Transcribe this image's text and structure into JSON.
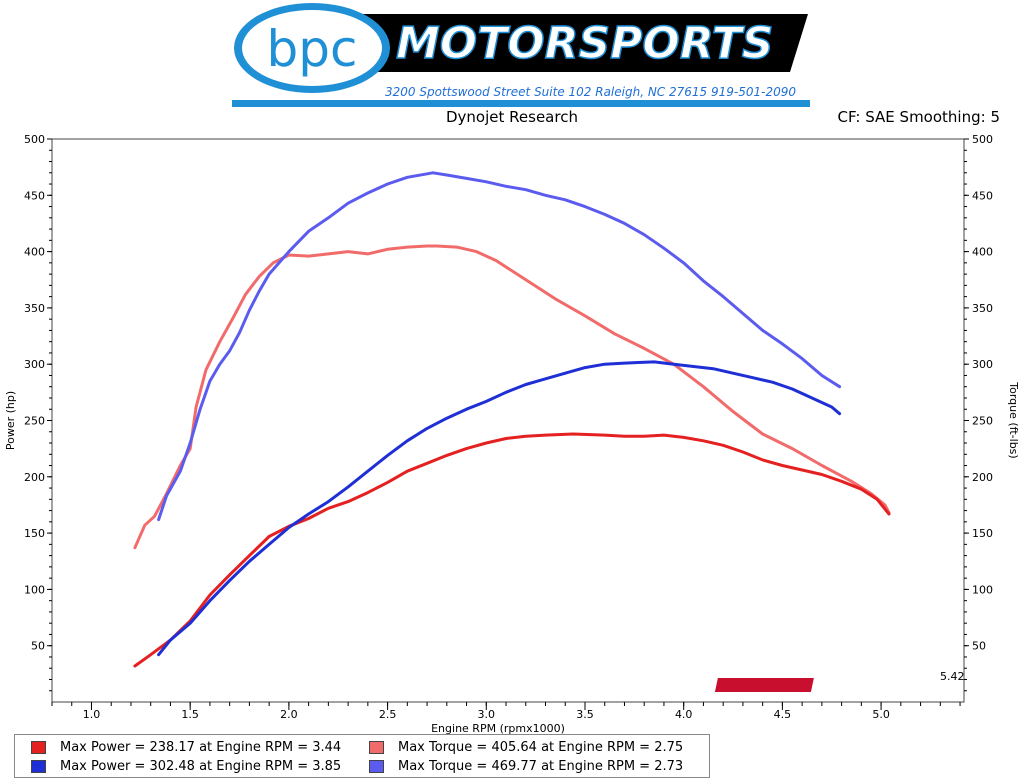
{
  "header": {
    "logo_text": "bpc",
    "brand_text": "MOTORSPORTS",
    "address": "3200 Spottswood Street Suite 102 Raleigh, NC 27615  919-501-2090"
  },
  "title": "Dynojet Research",
  "cf_label": "CF: SAE Smoothing: 5",
  "version": "5.42",
  "dynojet_logo": "Dynojet",
  "colors": {
    "power1": "#e52020",
    "torque1": "#f26b6b",
    "power2": "#1f2fd6",
    "torque2": "#5b5bef"
  },
  "legend": [
    {
      "text": "Max Power = 238.17 at Engine RPM = 3.44",
      "color": "#e52020"
    },
    {
      "text": "Max Torque = 405.64 at Engine RPM = 2.75",
      "color": "#f26b6b"
    },
    {
      "text": "Max Power = 302.48 at Engine RPM = 3.85",
      "color": "#1f2fd6"
    },
    {
      "text": "Max Torque = 469.77 at Engine RPM = 2.73",
      "color": "#5b5bef"
    }
  ],
  "chart_data": {
    "type": "line",
    "xlabel": "Engine RPM (rpmx1000)",
    "ylabel": "Power (hp)",
    "y2label": "Torque (ft-lbs)",
    "xlim": [
      0.8,
      5.42
    ],
    "ylim": [
      0,
      500
    ],
    "xticks": [
      "1.0",
      "1.5",
      "2.0",
      "2.5",
      "3.0",
      "3.5",
      "4.0",
      "4.5",
      "5.0"
    ],
    "yticks": [
      "50",
      "100",
      "150",
      "200",
      "250",
      "300",
      "350",
      "400",
      "450",
      "500"
    ],
    "grid": true,
    "series": [
      {
        "key": "torque1",
        "color": "#f26b6b",
        "x": [
          1.22,
          1.27,
          1.32,
          1.38,
          1.45,
          1.5,
          1.53,
          1.58,
          1.65,
          1.72,
          1.78,
          1.85,
          1.92,
          2.0,
          2.1,
          2.2,
          2.3,
          2.4,
          2.5,
          2.6,
          2.7,
          2.75,
          2.85,
          2.95,
          3.05,
          3.2,
          3.35,
          3.5,
          3.65,
          3.8,
          3.95,
          4.1,
          4.25,
          4.4,
          4.55,
          4.7,
          4.85,
          4.95,
          5.02,
          5.04
        ],
        "y": [
          137,
          157,
          165,
          185,
          210,
          225,
          262,
          295,
          320,
          342,
          362,
          378,
          390,
          397,
          396,
          398,
          400,
          398,
          402,
          404,
          405,
          405,
          404,
          400,
          392,
          375,
          358,
          343,
          327,
          314,
          300,
          280,
          258,
          238,
          225,
          210,
          196,
          185,
          175,
          168
        ]
      },
      {
        "key": "power1",
        "color": "#e52020",
        "x": [
          1.22,
          1.3,
          1.4,
          1.5,
          1.6,
          1.7,
          1.8,
          1.9,
          2.0,
          2.1,
          2.2,
          2.3,
          2.4,
          2.5,
          2.6,
          2.7,
          2.8,
          2.9,
          3.0,
          3.1,
          3.2,
          3.3,
          3.44,
          3.6,
          3.7,
          3.8,
          3.9,
          4.0,
          4.1,
          4.2,
          4.3,
          4.4,
          4.5,
          4.6,
          4.7,
          4.8,
          4.9,
          4.98,
          5.04
        ],
        "y": [
          32,
          42,
          55,
          72,
          95,
          113,
          130,
          147,
          156,
          163,
          172,
          178,
          186,
          195,
          205,
          212,
          219,
          225,
          230,
          234,
          236,
          237,
          238,
          237,
          236,
          236,
          237,
          235,
          232,
          228,
          222,
          215,
          210,
          206,
          202,
          196,
          189,
          180,
          167
        ]
      },
      {
        "key": "torque2",
        "color": "#5b5bef",
        "x": [
          1.34,
          1.38,
          1.45,
          1.5,
          1.55,
          1.6,
          1.65,
          1.7,
          1.75,
          1.8,
          1.85,
          1.9,
          2.0,
          2.1,
          2.2,
          2.3,
          2.4,
          2.5,
          2.6,
          2.73,
          2.8,
          2.9,
          3.0,
          3.1,
          3.2,
          3.3,
          3.4,
          3.5,
          3.6,
          3.7,
          3.8,
          3.9,
          4.0,
          4.1,
          4.2,
          4.3,
          4.4,
          4.5,
          4.6,
          4.7,
          4.79
        ],
        "y": [
          162,
          183,
          205,
          230,
          260,
          285,
          300,
          312,
          328,
          348,
          365,
          380,
          400,
          418,
          430,
          443,
          452,
          460,
          466,
          470,
          468,
          465,
          462,
          458,
          455,
          450,
          446,
          440,
          433,
          425,
          415,
          403,
          390,
          374,
          360,
          345,
          330,
          318,
          305,
          290,
          280
        ]
      },
      {
        "key": "power2",
        "color": "#1f2fd6",
        "x": [
          1.34,
          1.4,
          1.5,
          1.6,
          1.7,
          1.8,
          1.9,
          2.0,
          2.1,
          2.2,
          2.3,
          2.4,
          2.5,
          2.6,
          2.7,
          2.8,
          2.9,
          3.0,
          3.1,
          3.2,
          3.3,
          3.4,
          3.5,
          3.6,
          3.7,
          3.85,
          3.95,
          4.05,
          4.15,
          4.25,
          4.35,
          4.45,
          4.55,
          4.65,
          4.75,
          4.79
        ],
        "y": [
          42,
          55,
          70,
          90,
          108,
          125,
          140,
          155,
          167,
          178,
          191,
          205,
          219,
          232,
          243,
          252,
          260,
          267,
          275,
          282,
          287,
          292,
          297,
          300,
          301,
          302,
          300,
          298,
          296,
          292,
          288,
          284,
          278,
          270,
          262,
          256
        ]
      }
    ]
  }
}
